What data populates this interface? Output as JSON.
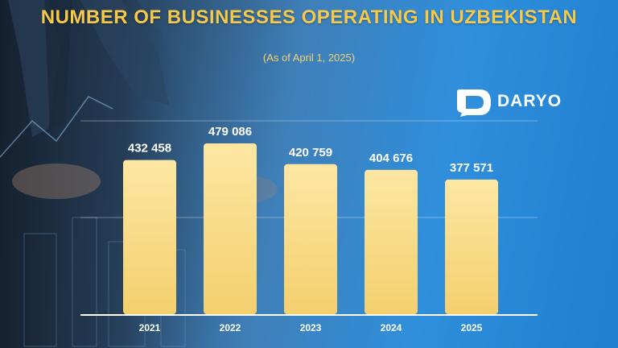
{
  "header": {
    "title": "NUMBER OF BUSINESSES OPERATING IN UZBEKISTAN",
    "subtitle": "(As of April 1, 2025)"
  },
  "brand": {
    "name": "DARYO",
    "icon": "speech-bubble-d-logo-icon"
  },
  "colors": {
    "bar_top": "#fce7a2",
    "bar_bottom": "#f4cf6e",
    "title": "#f6c94a",
    "accent_blue": "#2f8fdc"
  },
  "chart_data": {
    "type": "bar",
    "categories": [
      "2021",
      "2022",
      "2023",
      "2024",
      "2025"
    ],
    "values": [
      432458,
      479086,
      420759,
      404676,
      377571
    ],
    "value_labels": [
      "432 458",
      "479 086",
      "420 759",
      "404 676",
      "377 571"
    ],
    "ylim": [
      0,
      500000
    ],
    "grid": true,
    "legend": "none"
  }
}
